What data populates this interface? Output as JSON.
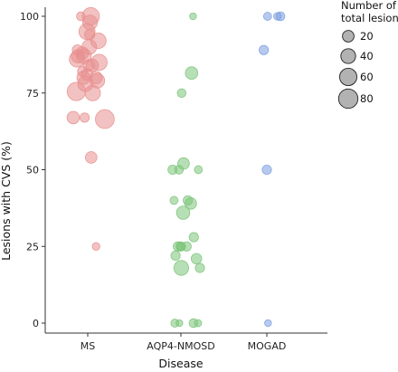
{
  "chart_data": {
    "type": "scatter",
    "xlabel": "Disease",
    "ylabel": "Lesions with CVS (%)",
    "categories": [
      "MS",
      "AQP4-NMOSD",
      "MOGAD"
    ],
    "ylim": [
      0,
      100
    ],
    "yticks": [
      0,
      25,
      50,
      75,
      100
    ],
    "grid": false,
    "legend": {
      "title": [
        "Number of",
        "total lesions:"
      ],
      "position": "top-right",
      "sizes": [
        20,
        40,
        60,
        80
      ],
      "labels": [
        "20",
        "40",
        "60",
        "80"
      ]
    },
    "series": [
      {
        "category": "MS",
        "color": "#e8908f",
        "points": [
          {
            "x": -0.18,
            "y": 100,
            "n": 8
          },
          {
            "x": 0.08,
            "y": 100,
            "n": 60
          },
          {
            "x": 0.06,
            "y": 98,
            "n": 40
          },
          {
            "x": -0.02,
            "y": 95,
            "n": 50
          },
          {
            "x": 0.05,
            "y": 94,
            "n": 15
          },
          {
            "x": 0.28,
            "y": 92,
            "n": 45
          },
          {
            "x": 0.04,
            "y": 90,
            "n": 40
          },
          {
            "x": -0.27,
            "y": 89,
            "n": 15
          },
          {
            "x": -0.14,
            "y": 88,
            "n": 25
          },
          {
            "x": -0.26,
            "y": 87,
            "n": 30
          },
          {
            "x": -0.28,
            "y": 86,
            "n": 45
          },
          {
            "x": -0.1,
            "y": 87,
            "n": 40
          },
          {
            "x": 0.3,
            "y": 85,
            "n": 50
          },
          {
            "x": 0.03,
            "y": 84,
            "n": 20
          },
          {
            "x": 0.12,
            "y": 84,
            "n": 25
          },
          {
            "x": -0.14,
            "y": 82,
            "n": 12
          },
          {
            "x": -0.02,
            "y": 81,
            "n": 20
          },
          {
            "x": 0.22,
            "y": 80,
            "n": 25
          },
          {
            "x": 0.25,
            "y": 79,
            "n": 40
          },
          {
            "x": -0.11,
            "y": 80,
            "n": 30
          },
          {
            "x": -0.06,
            "y": 78,
            "n": 45
          },
          {
            "x": -0.3,
            "y": 75.5,
            "n": 70
          },
          {
            "x": 0.13,
            "y": 75,
            "n": 45
          },
          {
            "x": -0.38,
            "y": 67,
            "n": 25
          },
          {
            "x": -0.08,
            "y": 67,
            "n": 10
          },
          {
            "x": 0.45,
            "y": 66.5,
            "n": 75
          },
          {
            "x": 0.09,
            "y": 54,
            "n": 20
          },
          {
            "x": 0.22,
            "y": 25,
            "n": 5
          }
        ]
      },
      {
        "category": "AQP4-NMOSD",
        "color": "#7cc47a",
        "points": [
          {
            "x": 0.32,
            "y": 100,
            "n": 3
          },
          {
            "x": 0.28,
            "y": 81.5,
            "n": 25
          },
          {
            "x": 0.02,
            "y": 75,
            "n": 8
          },
          {
            "x": 0.07,
            "y": 52,
            "n": 20
          },
          {
            "x": -0.22,
            "y": 50,
            "n": 10
          },
          {
            "x": -0.05,
            "y": 50,
            "n": 8
          },
          {
            "x": 0.46,
            "y": 50,
            "n": 6
          },
          {
            "x": -0.18,
            "y": 40,
            "n": 6
          },
          {
            "x": 0.18,
            "y": 40,
            "n": 10
          },
          {
            "x": 0.26,
            "y": 39,
            "n": 20
          },
          {
            "x": 0.06,
            "y": 36,
            "n": 30
          },
          {
            "x": 0.34,
            "y": 28,
            "n": 10
          },
          {
            "x": -0.08,
            "y": 25,
            "n": 10
          },
          {
            "x": -0.01,
            "y": 25,
            "n": 10
          },
          {
            "x": 0.01,
            "y": 25,
            "n": 8
          },
          {
            "x": 0.15,
            "y": 25,
            "n": 10
          },
          {
            "x": -0.14,
            "y": 22,
            "n": 10
          },
          {
            "x": 0.41,
            "y": 21,
            "n": 15
          },
          {
            "x": 0.01,
            "y": 18,
            "n": 40
          },
          {
            "x": 0.5,
            "y": 18,
            "n": 10
          },
          {
            "x": -0.16,
            "y": 0,
            "n": 6
          },
          {
            "x": -0.04,
            "y": 0,
            "n": 3
          },
          {
            "x": 0.33,
            "y": 0,
            "n": 8
          },
          {
            "x": 0.45,
            "y": 0,
            "n": 4
          }
        ]
      },
      {
        "category": "MOGAD",
        "color": "#7b9fe0",
        "points": [
          {
            "x": 0.02,
            "y": 100,
            "n": 6
          },
          {
            "x": 0.28,
            "y": 100,
            "n": 5
          },
          {
            "x": 0.36,
            "y": 100,
            "n": 8
          },
          {
            "x": -0.08,
            "y": 89,
            "n": 10
          },
          {
            "x": 0.0,
            "y": 50,
            "n": 10
          },
          {
            "x": 0.03,
            "y": 0,
            "n": 3
          }
        ]
      }
    ]
  }
}
